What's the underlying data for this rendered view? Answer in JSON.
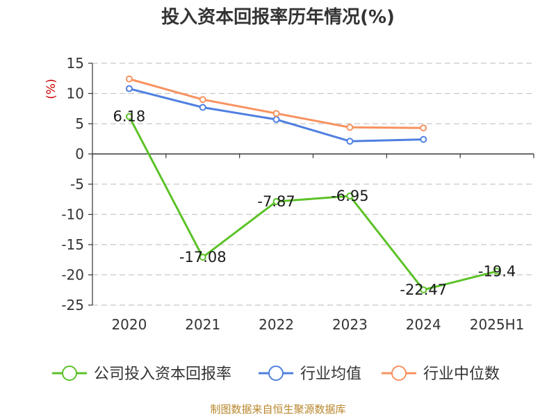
{
  "chart_data": {
    "type": "line",
    "title": "投入资本回报率历年情况(%)",
    "unit_label": "(%)",
    "categories": [
      "2020",
      "2021",
      "2022",
      "2023",
      "2024",
      "2025H1"
    ],
    "ylim": [
      -25,
      15
    ],
    "yticks": [
      "15",
      "10",
      "5",
      "0",
      "-5",
      "-10",
      "-15",
      "-20",
      "-25"
    ],
    "grid": true,
    "legend_position": "bottom",
    "series": [
      {
        "name": "公司投入资本回报率",
        "color": "#5bc227",
        "values": [
          6.18,
          -17.08,
          -7.87,
          -6.95,
          -22.47,
          -19.4
        ],
        "labels": [
          "6.18",
          "-17.08",
          "-7.87",
          "-6.95",
          "-22.47",
          "-19.4"
        ]
      },
      {
        "name": "行业均值",
        "color": "#4f7fe0",
        "values": [
          10.8,
          7.7,
          5.7,
          2.1,
          2.4,
          null
        ]
      },
      {
        "name": "行业中位数",
        "color": "#f79260",
        "values": [
          12.4,
          9.0,
          6.7,
          4.4,
          4.3,
          null
        ]
      }
    ]
  },
  "source": "制图数据来自恒生聚源数据库"
}
